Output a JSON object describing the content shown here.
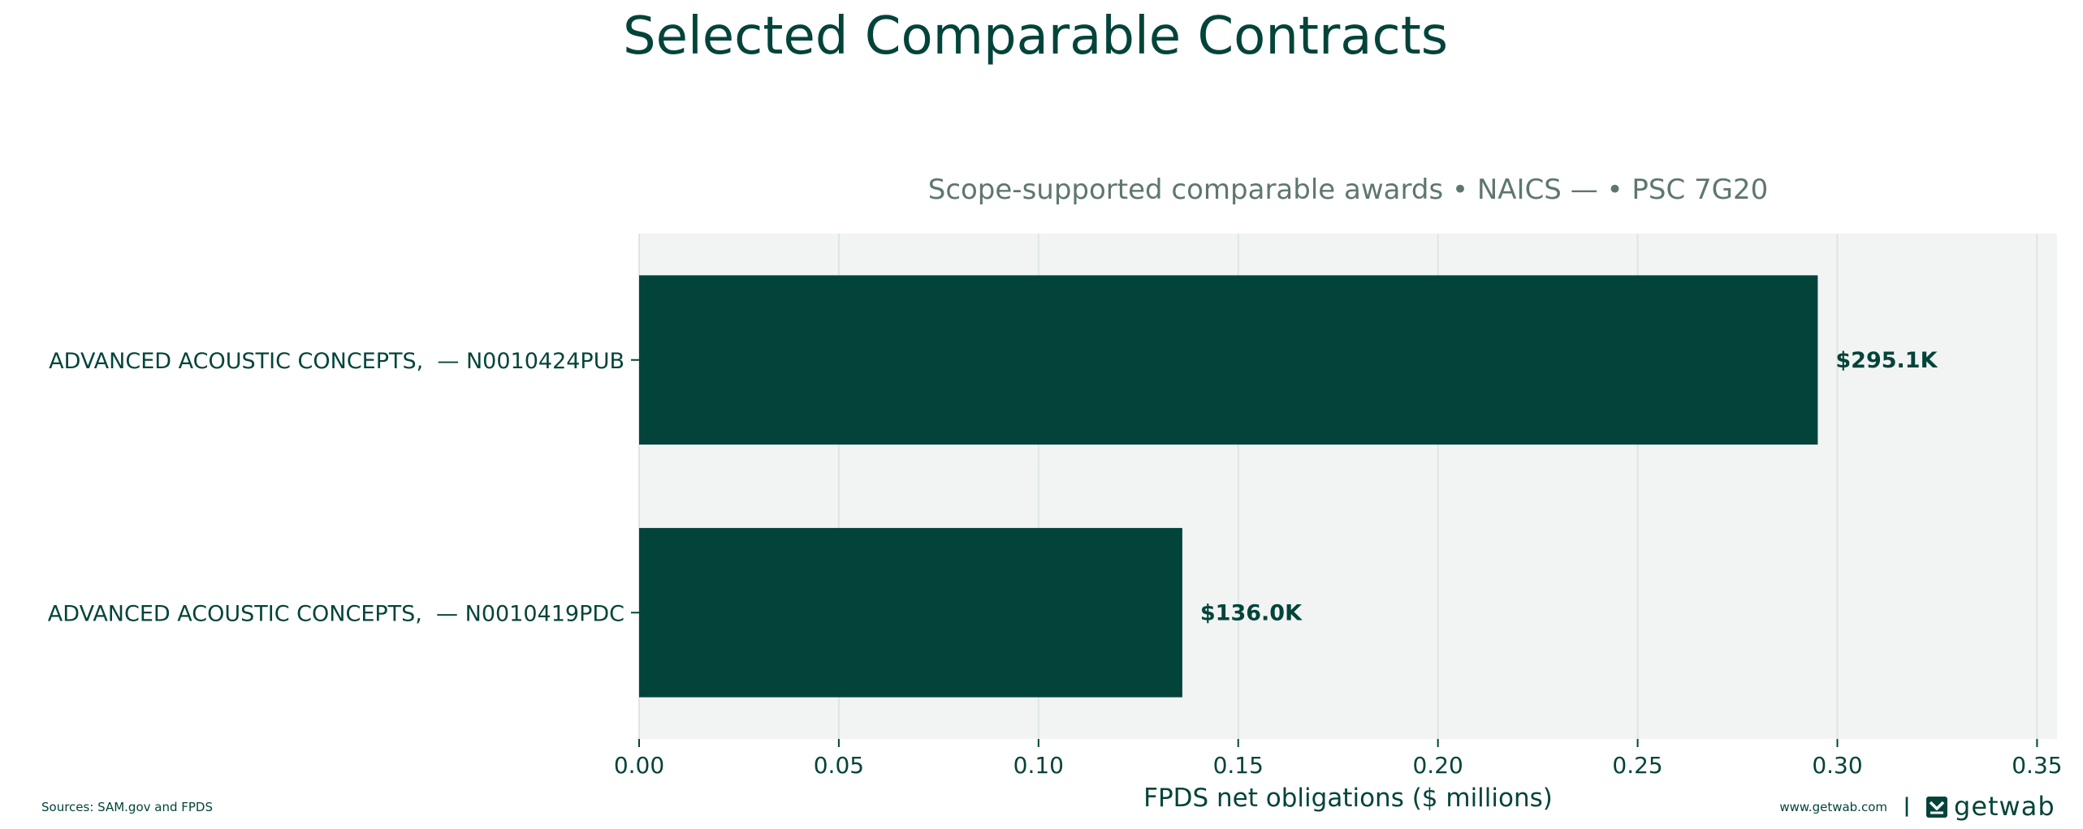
{
  "colors": {
    "bar": "#03443a",
    "text": "#03443a",
    "subtitle": "#5f7670",
    "plot_background": "#f2f4f3",
    "grid": "#dfe5e3"
  },
  "chart_data": {
    "type": "bar",
    "orientation": "horizontal",
    "title": "Selected Comparable Contracts",
    "subtitle": "Scope-supported comparable awards • NAICS — • PSC 7G20",
    "xlabel": "FPDS net obligations ($ millions)",
    "ylabel": "",
    "xlim": [
      0,
      0.355
    ],
    "xticks": [
      0.0,
      0.05,
      0.1,
      0.15,
      0.2,
      0.25,
      0.3,
      0.35
    ],
    "xtick_labels": [
      "0.00",
      "0.05",
      "0.10",
      "0.15",
      "0.20",
      "0.25",
      "0.30",
      "0.35"
    ],
    "grid": "vertical",
    "categories": [
      "ADVANCED ACOUSTIC CONCEPTS,  — N0010424PUB",
      "ADVANCED ACOUSTIC CONCEPTS,  — N0010419PDC"
    ],
    "values": [
      0.2951,
      0.136
    ],
    "data_labels": [
      "$295.1K",
      "$136.0K"
    ]
  },
  "footer": {
    "source": "Sources: SAM.gov and FPDS",
    "website": "www.getwab.com",
    "separator": "|",
    "brand": "getwab",
    "brand_icon": "getwab-logo-icon"
  }
}
